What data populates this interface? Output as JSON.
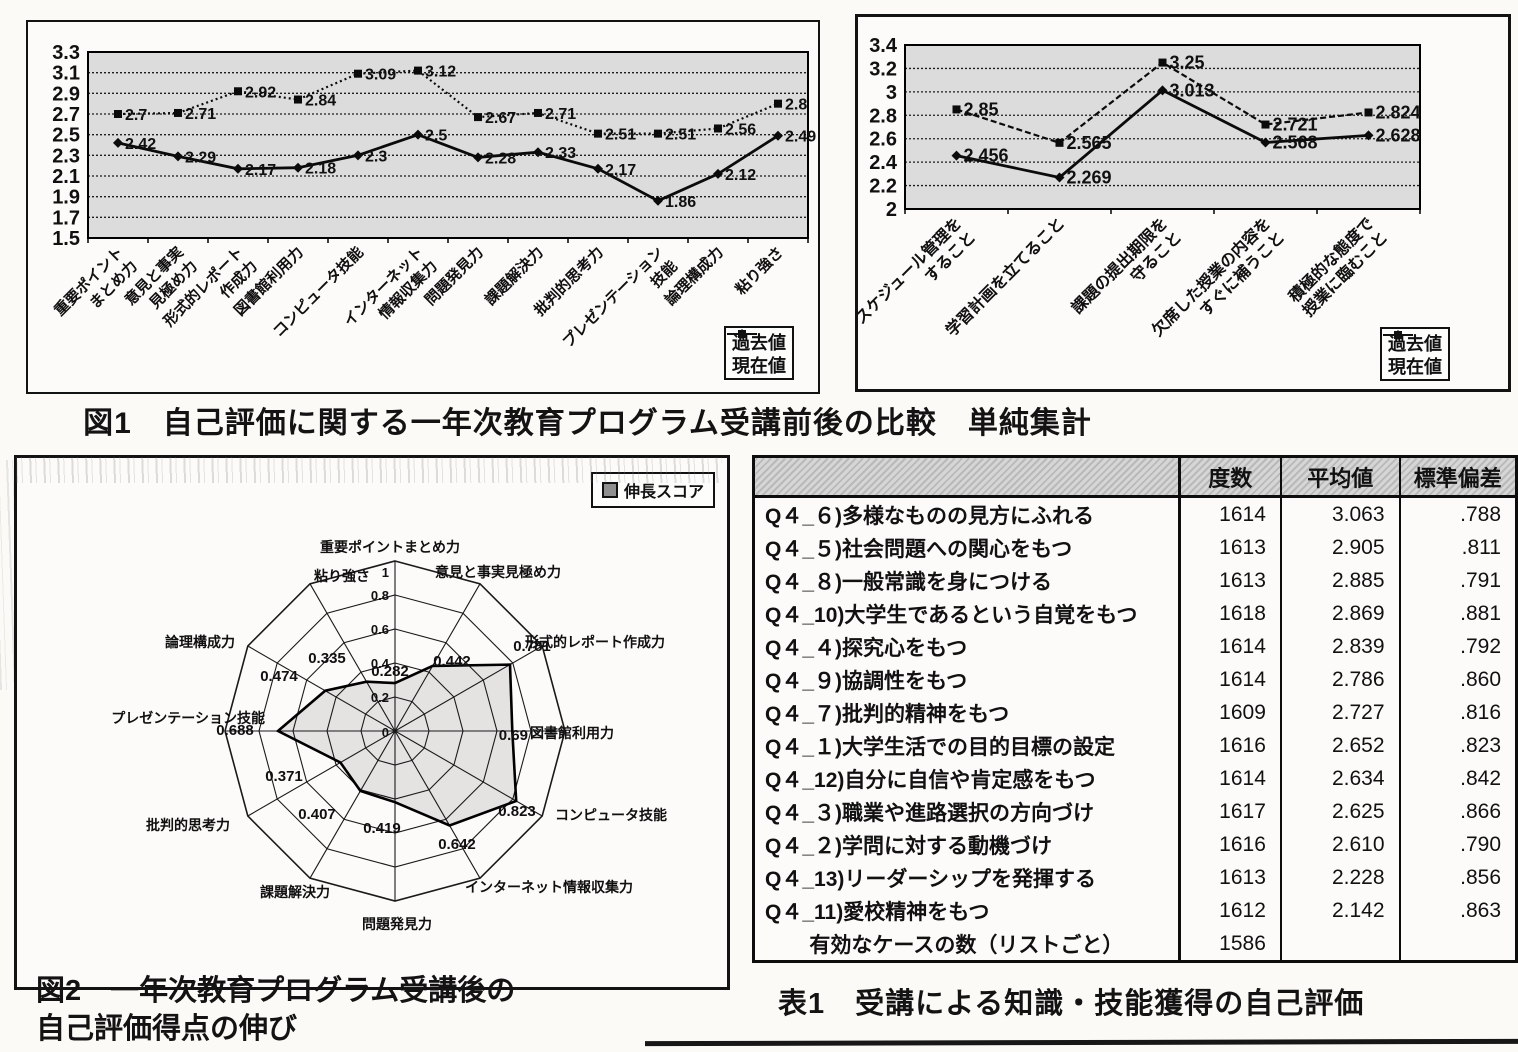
{
  "captions": {
    "fig1": "図1　自己評価に関する一年次教育プログラム受講前後の比較　単純集計",
    "fig2_line1": "図2　一年次教育プログラム受講後の",
    "fig2_line2": "自己評価得点の伸び",
    "table1": "表1　受講による知識・技能獲得の自己評価"
  },
  "chart_data": [
    {
      "id": "fig1_left",
      "type": "line",
      "title": "",
      "ylim": [
        1.5,
        3.3
      ],
      "yticks": [
        "3.3",
        "3.1",
        "2.9",
        "2.7",
        "2.5",
        "2.3",
        "2.1",
        "1.9",
        "1.7",
        "1.5"
      ],
      "grid": true,
      "legend_position": "bottom-right",
      "categories": [
        [
          "重要ポイント",
          "まとめ力"
        ],
        [
          "意見と事実",
          "見極め力"
        ],
        [
          "形式的レポート",
          "作成力"
        ],
        "図書館利用力",
        "コンピュータ技能",
        [
          "インターネット",
          "情報収集力"
        ],
        "問題発見力",
        "課題解決力",
        "批判的思考力",
        [
          "プレゼンテーション",
          "技能"
        ],
        "論理構成力",
        "粘り強さ"
      ],
      "series": [
        {
          "name": "過去値",
          "marker": "diamond",
          "line": "solid",
          "values": [
            2.42,
            2.29,
            2.17,
            2.18,
            2.3,
            2.5,
            2.28,
            2.33,
            2.17,
            1.86,
            2.12,
            2.49
          ]
        },
        {
          "name": "現在値",
          "marker": "square",
          "line": "dashed",
          "values": [
            2.7,
            2.71,
            2.92,
            2.84,
            3.09,
            3.12,
            2.67,
            2.71,
            2.51,
            2.51,
            2.56,
            2.8
          ]
        }
      ]
    },
    {
      "id": "fig1_right",
      "type": "line",
      "title": "",
      "ylim": [
        2,
        3.4
      ],
      "yticks": [
        "3.4",
        "3.2",
        "3",
        "2.8",
        "2.6",
        "2.4",
        "2.2",
        "2"
      ],
      "grid": true,
      "legend_position": "bottom-right",
      "categories": [
        [
          "スケジュール管理を",
          "すること"
        ],
        "学習計画を立てること",
        [
          "課題の提出期限を",
          "守ること"
        ],
        [
          "欠席した授業の内容を",
          "すぐに補うこと"
        ],
        [
          "積極的な態度で",
          "授業に臨むこと"
        ]
      ],
      "series": [
        {
          "name": "過去値",
          "marker": "diamond",
          "line": "solid",
          "values": [
            2.456,
            2.269,
            3.013,
            2.568,
            2.628
          ]
        },
        {
          "name": "現在値",
          "marker": "square",
          "line": "dashed",
          "values": [
            2.85,
            2.565,
            3.25,
            2.721,
            2.824
          ]
        }
      ]
    },
    {
      "id": "fig2_radar",
      "type": "radar",
      "legend_label": "伸長スコア",
      "rlim": [
        0,
        1
      ],
      "rticks": [
        "0",
        "0.2",
        "0.4",
        "0.6",
        "0.8",
        "1"
      ],
      "categories": [
        "重要ポイントまとめ力",
        "意見と事実見極め力",
        "形式的レポート作成力",
        "図書館利用力",
        "コンピュータ技能",
        "インターネット情報収集力",
        "問題発見力",
        "課題解決力",
        "批判的思考力",
        "プレゼンテーション技能",
        "論理構成力",
        "粘り強さ"
      ],
      "values": [
        0.282,
        0.442,
        0.781,
        0.69,
        0.823,
        0.642,
        0.419,
        0.407,
        0.371,
        0.688,
        0.474,
        0.335
      ]
    },
    {
      "id": "table1",
      "type": "table",
      "columns": [
        "",
        "度数",
        "平均値",
        "標準偏差"
      ],
      "rows": [
        [
          "Q４_６)多様なものの見方にふれる",
          "1614",
          "3.063",
          ".788"
        ],
        [
          "Q４_５)社会問題への関心をもつ",
          "1613",
          "2.905",
          ".811"
        ],
        [
          "Q４_８)一般常識を身につける",
          "1613",
          "2.885",
          ".791"
        ],
        [
          "Q４_10)大学生であるという自覚をもつ",
          "1618",
          "2.869",
          ".881"
        ],
        [
          "Q４_４)探究心をもつ",
          "1614",
          "2.839",
          ".792"
        ],
        [
          "Q４_９)協調性をもつ",
          "1614",
          "2.786",
          ".860"
        ],
        [
          "Q４_７)批判的精神をもつ",
          "1609",
          "2.727",
          ".816"
        ],
        [
          "Q４_１)大学生活での目的目標の設定",
          "1616",
          "2.652",
          ".823"
        ],
        [
          "Q４_12)自分に自信や肯定感をもつ",
          "1614",
          "2.634",
          ".842"
        ],
        [
          "Q４_３)職業や進路選択の方向づけ",
          "1617",
          "2.625",
          ".866"
        ],
        [
          "Q４_２)学問に対する動機づけ",
          "1616",
          "2.610",
          ".790"
        ],
        [
          "Q４_13)リーダーシップを発揮する",
          "1613",
          "2.228",
          ".856"
        ],
        [
          "Q４_11)愛校精神をもつ",
          "1612",
          "2.142",
          ".863"
        ],
        [
          "有効なケースの数（リストごと）",
          "1586",
          "",
          ""
        ]
      ]
    }
  ]
}
